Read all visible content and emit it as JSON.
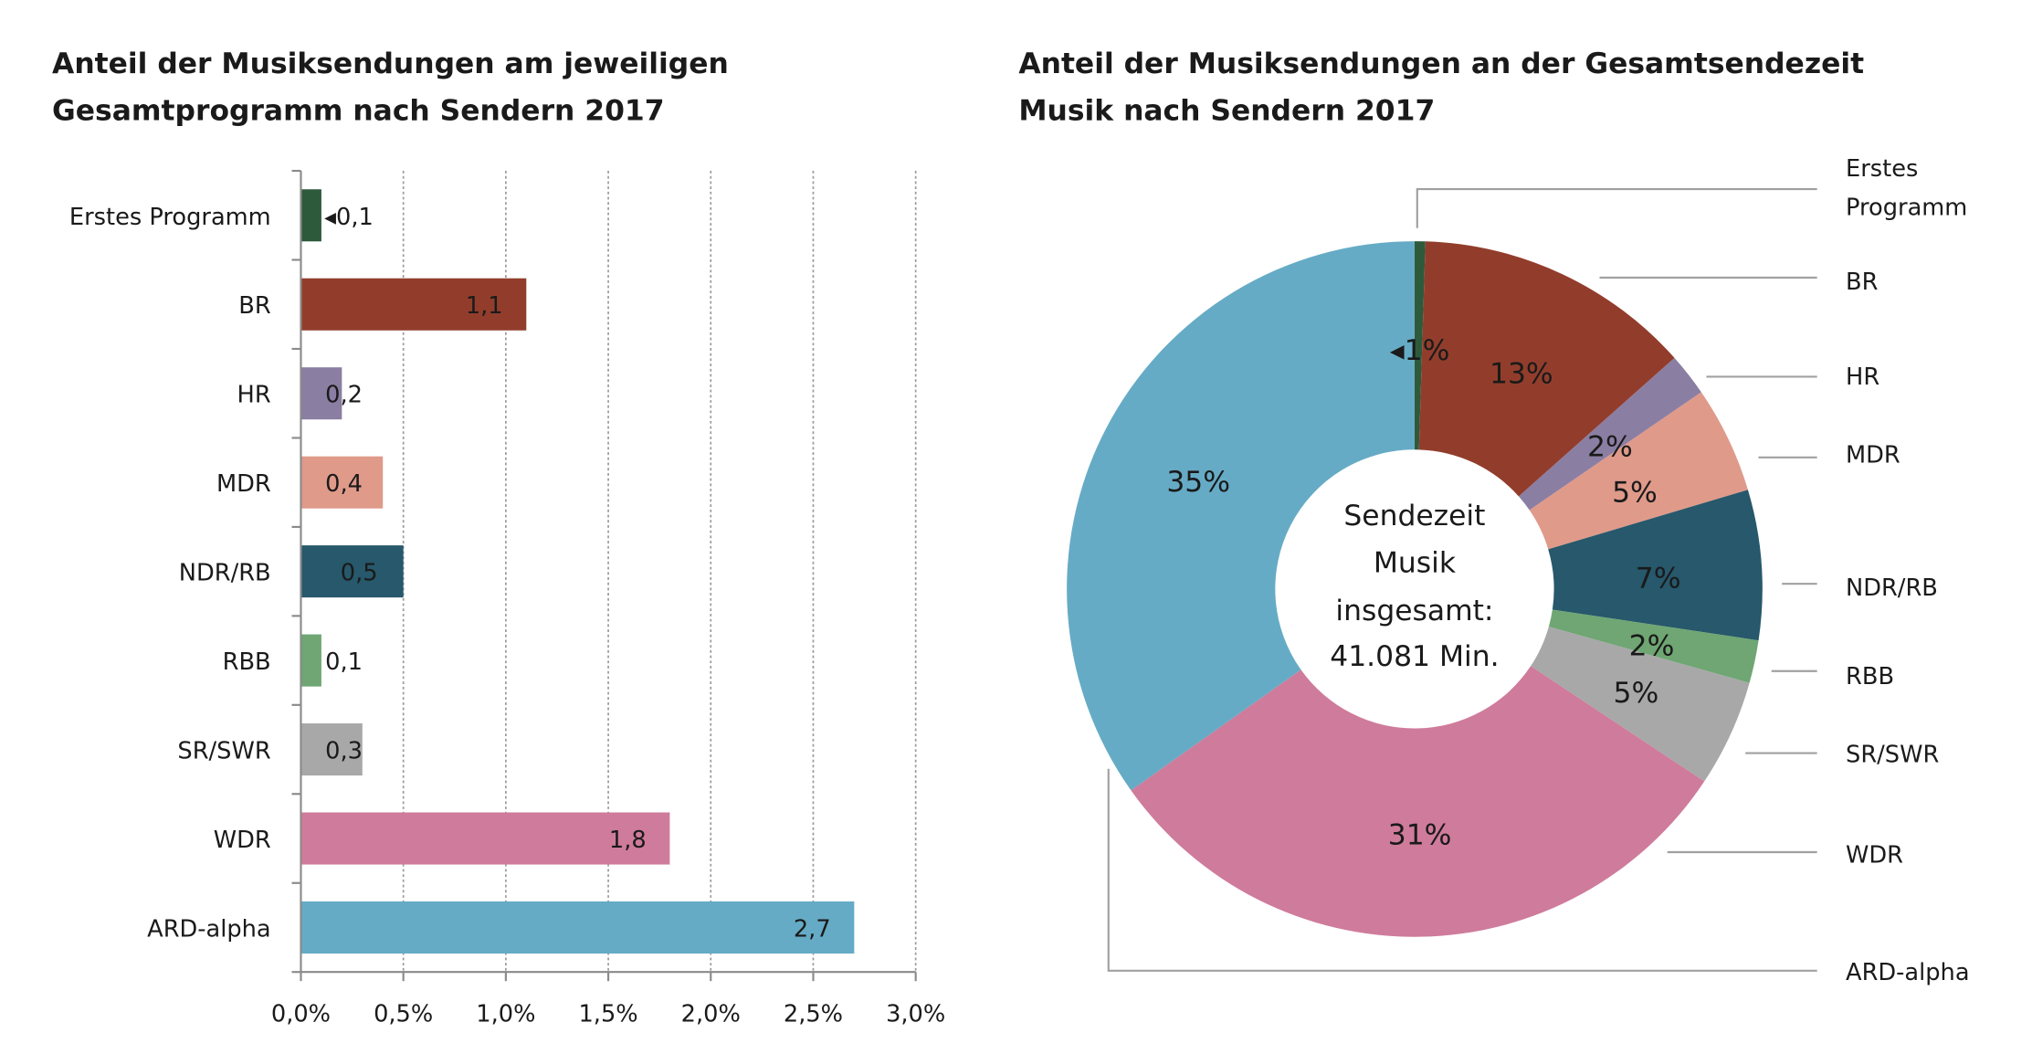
{
  "chart_data": [
    {
      "type": "bar",
      "orientation": "horizontal",
      "title": [
        "Anteil der Musiksendungen am jeweiligen",
        "Gesamtprogramm nach Sendern 2017"
      ],
      "categories": [
        "Erstes Programm",
        "BR",
        "HR",
        "MDR",
        "NDR/RB",
        "RBB",
        "SR/SWR",
        "WDR",
        "ARD-alpha"
      ],
      "values": [
        0.1,
        1.1,
        0.2,
        0.4,
        0.5,
        0.1,
        0.3,
        1.8,
        2.7
      ],
      "value_labels": [
        "0,1",
        "1,1",
        "0,2",
        "0,4",
        "0,5",
        "0,1",
        "0,3",
        "1,8",
        "2,7"
      ],
      "unit": "%",
      "xlim": [
        0,
        3.0
      ],
      "xticks": [
        "0,0%",
        "0,5%",
        "1,0%",
        "1,5%",
        "2,0%",
        "2,5%",
        "3,0%"
      ],
      "grid": "vertical dotted",
      "colors": [
        "#2e5a3c",
        "#923d2c",
        "#8b7ea3",
        "#df9a8a",
        "#27586b",
        "#6fa673",
        "#a8a8a8",
        "#cf7b9b",
        "#66abc5"
      ]
    },
    {
      "type": "pie",
      "donut": true,
      "title": [
        "Anteil der Musiksendungen an der Gesamtsendezeit",
        "Musik nach Sendern 2017"
      ],
      "categories": [
        "Erstes Programm",
        "BR",
        "HR",
        "MDR",
        "NDR/RB",
        "RBB",
        "SR/SWR",
        "WDR",
        "ARD-alpha"
      ],
      "legend_labels": [
        [
          "Erstes",
          "Programm"
        ],
        [
          "BR"
        ],
        [
          "HR"
        ],
        [
          "MDR"
        ],
        [
          "NDR/RB"
        ],
        [
          "RBB"
        ],
        [
          "SR/SWR"
        ],
        [
          "WDR"
        ],
        [
          "ARD-alpha"
        ]
      ],
      "values": [
        0.5,
        13,
        2,
        5,
        7,
        2,
        5,
        31,
        35
      ],
      "value_labels": [
        "1%",
        "13%",
        "2%",
        "5%",
        "7%",
        "2%",
        "5%",
        "31%",
        "35%"
      ],
      "center_text": [
        "Sendezeit",
        "Musik",
        "insgesamt:",
        "41.081 Min."
      ],
      "legend": "right, with leader lines",
      "colors": [
        "#2e5a3c",
        "#923d2c",
        "#8b7ea3",
        "#df9a8a",
        "#27586b",
        "#6fa673",
        "#a8a8a8",
        "#cf7b9b",
        "#66abc5"
      ]
    }
  ]
}
